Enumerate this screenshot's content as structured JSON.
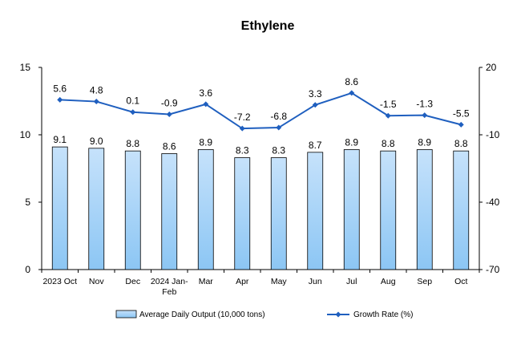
{
  "chart_data": {
    "type": "bar",
    "title": "Ethylene",
    "categories": [
      "2023 Oct",
      "Nov",
      "Dec",
      "2024 Jan-Feb",
      "Mar",
      "Apr",
      "May",
      "Jun",
      "Jul",
      "Aug",
      "Sep",
      "Oct"
    ],
    "series": [
      {
        "name": "Average Daily Output (10,000 tons)",
        "type": "bar",
        "axis": "left",
        "values": [
          9.1,
          9.0,
          8.8,
          8.6,
          8.9,
          8.3,
          8.3,
          8.7,
          8.9,
          8.8,
          8.9,
          8.8
        ],
        "labels": [
          "9.1",
          "9.0",
          "8.8",
          "8.6",
          "8.9",
          "8.3",
          "8.3",
          "8.7",
          "8.9",
          "8.8",
          "8.9",
          "8.8"
        ]
      },
      {
        "name": "Growth Rate (%)",
        "type": "line",
        "axis": "right",
        "values": [
          5.6,
          4.8,
          0.1,
          -0.9,
          3.6,
          -7.2,
          -6.8,
          3.3,
          8.6,
          -1.5,
          -1.3,
          -5.5
        ],
        "labels": [
          "5.6",
          "4.8",
          "0.1",
          "-0.9",
          "3.6",
          "-7.2",
          "-6.8",
          "3.3",
          "8.6",
          "-1.5",
          "-1.3",
          "-5.5"
        ]
      }
    ],
    "ylim_left": [
      0,
      15
    ],
    "yticks_left": [
      0,
      5,
      10,
      15
    ],
    "ylim_right": [
      -70,
      20
    ],
    "yticks_right": [
      -70,
      -40,
      -10,
      20
    ],
    "grid": false,
    "legend_position": "bottom",
    "colors": {
      "bar_fill_top": "#c6e2fb",
      "bar_fill_bottom": "#8cc6f4",
      "bar_stroke": "#000000",
      "line": "#1f5fbf",
      "axis": "#000000"
    }
  }
}
